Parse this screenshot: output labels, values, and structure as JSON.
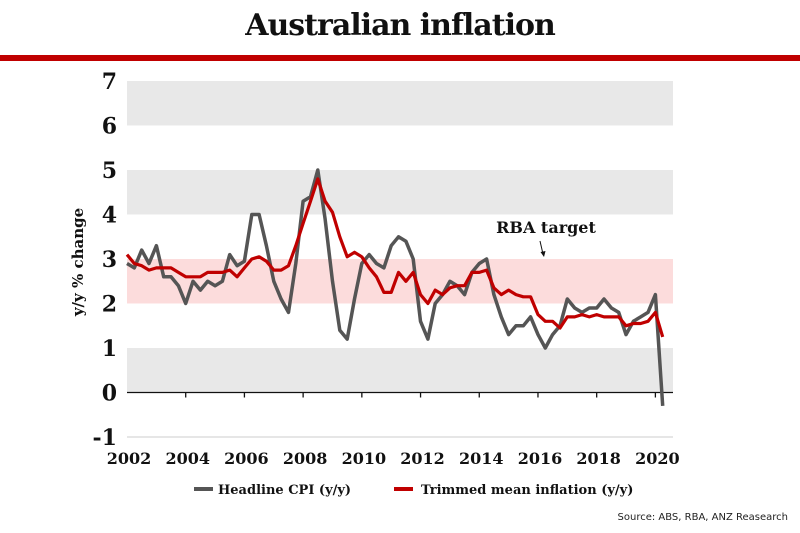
{
  "chart_data": {
    "type": "line",
    "title": "Australian inflation",
    "xlabel": "",
    "ylabel": "y/y % change",
    "ylim": [
      -1,
      7
    ],
    "xlim": [
      2002,
      2020.6
    ],
    "yticks": [
      "7",
      "6",
      "5",
      "4",
      "3",
      "2",
      "1",
      "0",
      "-1"
    ],
    "ytick_values": [
      7,
      6,
      5,
      4,
      3,
      2,
      1,
      0,
      -1
    ],
    "xticks": [
      "2002",
      "2004",
      "2006",
      "2008",
      "2010",
      "2012",
      "2014",
      "2016",
      "2018",
      "2020"
    ],
    "xtick_values": [
      2002,
      2004,
      2006,
      2008,
      2010,
      2012,
      2014,
      2016,
      2018,
      2020
    ],
    "grid": "alternating horizontal bands",
    "target_band": {
      "label": "RBA target",
      "from": 2,
      "to": 3,
      "color": "#fcdcdc"
    },
    "band_color": "#e8e8e8",
    "x_start": 2002.0,
    "x_step": 0.25,
    "series": [
      {
        "name": "Headline CPI (y/y)",
        "color": "#555555",
        "values": [
          2.9,
          2.8,
          3.2,
          2.9,
          3.3,
          2.6,
          2.6,
          2.4,
          2.0,
          2.5,
          2.3,
          2.5,
          2.4,
          2.5,
          3.1,
          2.85,
          2.95,
          4.0,
          4.0,
          3.3,
          2.5,
          2.1,
          1.8,
          2.9,
          4.3,
          4.4,
          5.0,
          3.9,
          2.5,
          1.4,
          1.2,
          2.1,
          2.9,
          3.1,
          2.9,
          2.8,
          3.3,
          3.5,
          3.4,
          3.0,
          1.6,
          1.2,
          2.0,
          2.2,
          2.5,
          2.4,
          2.2,
          2.7,
          2.9,
          3.0,
          2.2,
          1.7,
          1.3,
          1.5,
          1.5,
          1.7,
          1.3,
          1.0,
          1.3,
          1.5,
          2.1,
          1.9,
          1.8,
          1.9,
          1.9,
          2.1,
          1.9,
          1.8,
          1.3,
          1.6,
          1.7,
          1.8,
          2.2,
          -0.3
        ]
      },
      {
        "name": "Trimmed mean inflation (y/y)",
        "color": "#c00000",
        "values": [
          3.1,
          2.9,
          2.85,
          2.75,
          2.8,
          2.8,
          2.8,
          2.7,
          2.6,
          2.6,
          2.6,
          2.7,
          2.7,
          2.7,
          2.75,
          2.6,
          2.8,
          3.0,
          3.05,
          2.95,
          2.75,
          2.75,
          2.85,
          3.3,
          3.8,
          4.3,
          4.8,
          4.3,
          4.05,
          3.5,
          3.05,
          3.15,
          3.05,
          2.8,
          2.6,
          2.25,
          2.25,
          2.7,
          2.5,
          2.7,
          2.2,
          2.0,
          2.3,
          2.2,
          2.35,
          2.4,
          2.4,
          2.7,
          2.7,
          2.75,
          2.35,
          2.2,
          2.3,
          2.2,
          2.15,
          2.15,
          1.75,
          1.6,
          1.6,
          1.45,
          1.7,
          1.7,
          1.75,
          1.7,
          1.75,
          1.7,
          1.7,
          1.7,
          1.5,
          1.55,
          1.55,
          1.6,
          1.8,
          1.25
        ]
      }
    ],
    "legend": "bottom-center",
    "annotation": "RBA target",
    "source": "Source: ABS, RBA, ANZ Reasearch"
  }
}
